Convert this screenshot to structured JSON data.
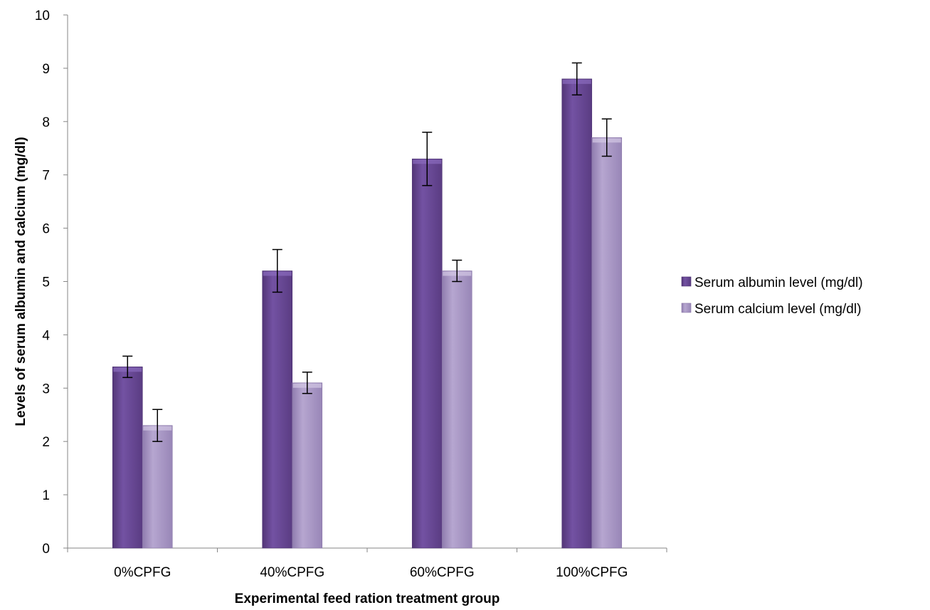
{
  "chart_data": {
    "type": "bar",
    "title": "",
    "xlabel": "Experimental feed ration treatment group",
    "ylabel": "Levels of serum albumin and calcium (mg/dl)",
    "categories": [
      "0%CPFG",
      "40%CPFG",
      "60%CPFG",
      "100%CPFG"
    ],
    "ylim": [
      0,
      10
    ],
    "yticks": [
      "0",
      "1",
      "2",
      "3",
      "4",
      "5",
      "6",
      "7",
      "8",
      "9",
      "10"
    ],
    "grid": false,
    "legend_position": "right",
    "series": [
      {
        "name": "Serum albumin level (mg/dl)",
        "values": [
          3.4,
          5.2,
          7.3,
          8.8
        ],
        "errors": [
          0.2,
          0.4,
          0.5,
          0.3
        ],
        "color": "#6a4a96"
      },
      {
        "name": "Serum calcium level (mg/dl)",
        "values": [
          2.3,
          3.1,
          5.2,
          7.7
        ],
        "errors": [
          0.3,
          0.2,
          0.2,
          0.35
        ],
        "color": "#a593c2"
      }
    ]
  }
}
